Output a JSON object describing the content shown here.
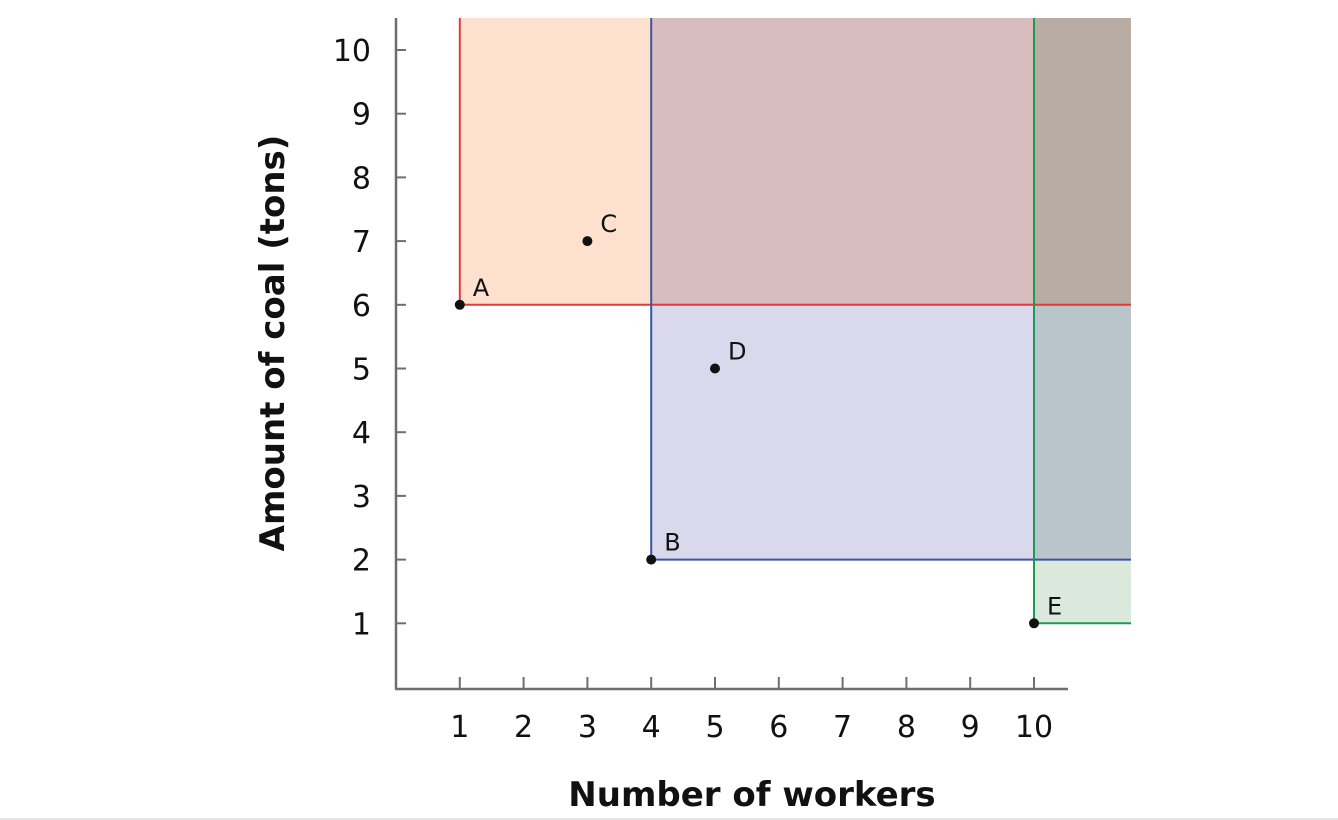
{
  "chart_data": {
    "type": "scatter",
    "xlabel": "Number of workers",
    "ylabel": "Amount of coal (tons)",
    "xlim": [
      0,
      10.5
    ],
    "ylim": [
      0,
      10.5
    ],
    "xticks": [
      1,
      2,
      3,
      4,
      5,
      6,
      7,
      8,
      9,
      10
    ],
    "yticks": [
      1,
      2,
      3,
      4,
      5,
      6,
      7,
      8,
      9,
      10
    ],
    "grid": false,
    "points": [
      {
        "label": "A",
        "x": 1,
        "y": 6
      },
      {
        "label": "B",
        "x": 4,
        "y": 2
      },
      {
        "label": "C",
        "x": 3,
        "y": 7
      },
      {
        "label": "D",
        "x": 5,
        "y": 5
      },
      {
        "label": "E",
        "x": 10,
        "y": 1
      }
    ],
    "regions": [
      {
        "corner": "A",
        "x": 1,
        "y": 6,
        "fill": "#fde0cd",
        "line": "#e03a3a"
      },
      {
        "corner": "B",
        "x": 4,
        "y": 2,
        "fill": "#d9d8ec",
        "line": "#3b55a0"
      },
      {
        "corner": "E",
        "x": 10,
        "y": 1,
        "fill": "#dbe8dc",
        "line": "#1f9a55"
      }
    ]
  }
}
